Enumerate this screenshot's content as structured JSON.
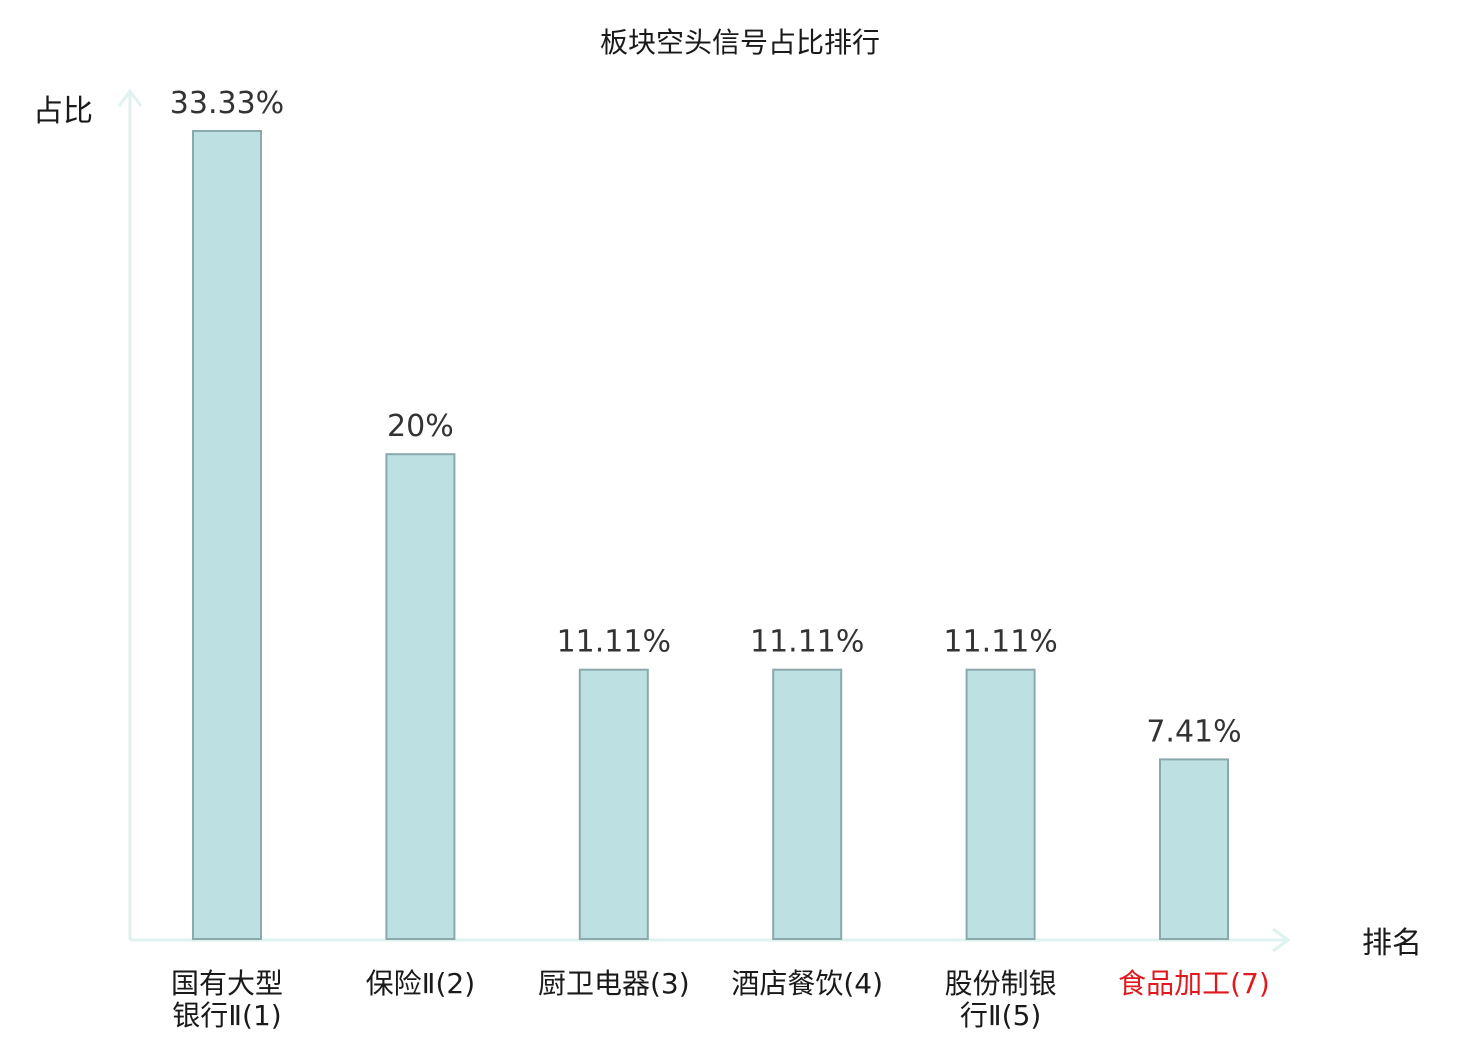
{
  "chart_data": {
    "type": "bar",
    "title": "板块空头信号占比排行",
    "ylabel": "占比",
    "xlabel": "排名",
    "categories": [
      [
        "国有大型",
        "银行Ⅱ(1)"
      ],
      [
        "保险Ⅱ(2)"
      ],
      [
        "厨卫电器(3)"
      ],
      [
        "酒店餐饮(4)"
      ],
      [
        "股份制银",
        "行Ⅱ(5)"
      ],
      [
        "食品加工(7)"
      ]
    ],
    "values": [
      33.33,
      20,
      11.11,
      11.11,
      11.11,
      7.41
    ],
    "value_labels": [
      "33.33%",
      "20%",
      "11.11%",
      "11.11%",
      "11.11%",
      "7.41%"
    ],
    "highlighted_category_index": 5,
    "ylim": [
      0,
      33.33
    ],
    "grid": false,
    "colors": {
      "bar_fill": "#bde0e3",
      "bar_stroke": "#8aa9ad",
      "axis": "#dff2ef",
      "text": "#1a1a1a",
      "value_text": "#333333",
      "highlight_text": "#e0191e"
    }
  }
}
